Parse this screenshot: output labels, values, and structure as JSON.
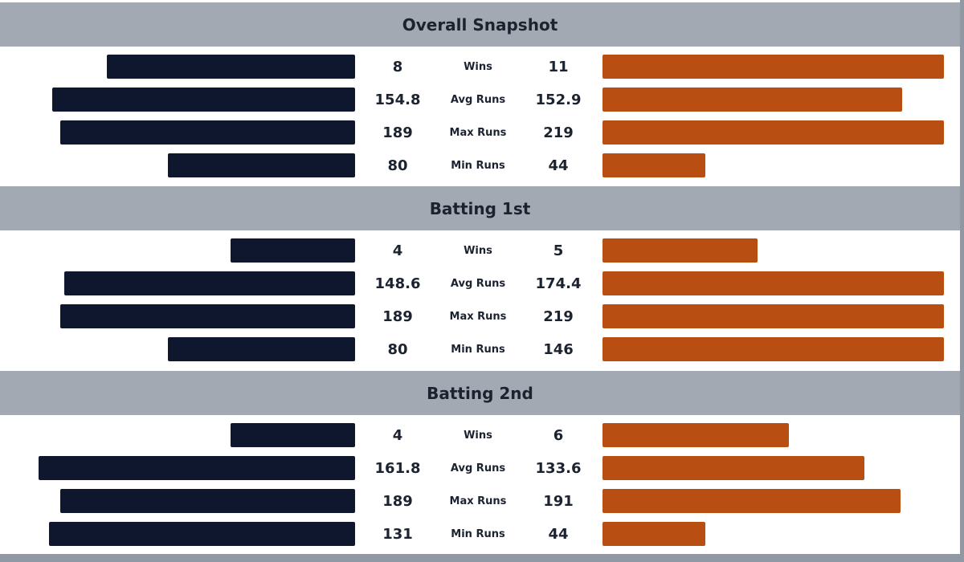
{
  "colors": {
    "team_left": "#0f172e",
    "team_right": "#b84e11",
    "header_bg": "#a2a9b2"
  },
  "chart_data": {
    "type": "bar",
    "orientation": "horizontal-butterfly",
    "sections": [
      {
        "title": "Overall Snapshot",
        "rows": [
          {
            "label": "Wins",
            "left": "8",
            "right": "11"
          },
          {
            "label": "Avg Runs",
            "left": "154.8",
            "right": "152.9"
          },
          {
            "label": "Max Runs",
            "left": "189",
            "right": "219"
          },
          {
            "label": "Min Runs",
            "left": "80",
            "right": "44"
          }
        ]
      },
      {
        "title": "Batting 1st",
        "rows": [
          {
            "label": "Wins",
            "left": "4",
            "right": "5"
          },
          {
            "label": "Avg Runs",
            "left": "148.6",
            "right": "174.4"
          },
          {
            "label": "Max Runs",
            "left": "189",
            "right": "219"
          },
          {
            "label": "Min Runs",
            "left": "80",
            "right": "146"
          }
        ]
      },
      {
        "title": "Batting 2nd",
        "rows": [
          {
            "label": "Wins",
            "left": "4",
            "right": "6"
          },
          {
            "label": "Avg Runs",
            "left": "161.8",
            "right": "133.6"
          },
          {
            "label": "Max Runs",
            "left": "189",
            "right": "191"
          },
          {
            "label": "Min Runs",
            "left": "131",
            "right": "44"
          }
        ]
      }
    ]
  }
}
